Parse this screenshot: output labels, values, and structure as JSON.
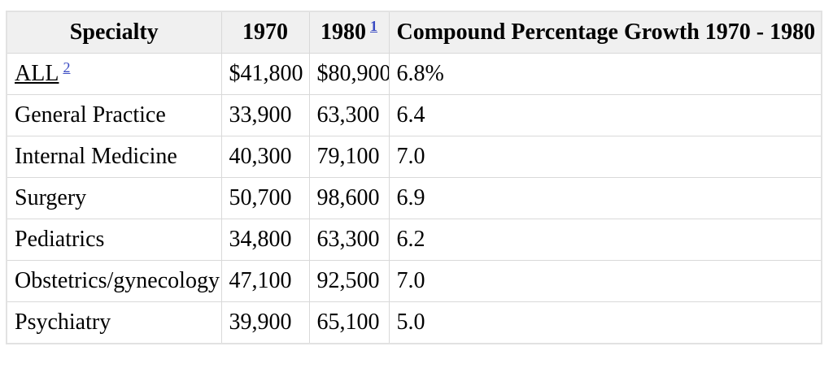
{
  "table": {
    "header": {
      "specialty": "Specialty",
      "y1970": "1970",
      "y1980": "1980",
      "y1980_footnote": "1",
      "growth": "Compound Percentage Growth 1970 - 1980"
    },
    "rows": [
      {
        "specialty": "ALL",
        "footnote": "2",
        "v1970": "$41,800",
        "v1980": "$80,900",
        "growth": "6.8%"
      },
      {
        "specialty": "General Practice",
        "v1970": "33,900",
        "v1980": "63,300",
        "growth": "6.4"
      },
      {
        "specialty": "Internal Medicine",
        "v1970": "40,300",
        "v1980": "79,100",
        "growth": "7.0"
      },
      {
        "specialty": "Surgery",
        "v1970": "50,700",
        "v1980": "98,600",
        "growth": "6.9"
      },
      {
        "specialty": "Pediatrics",
        "v1970": "34,800",
        "v1980": "63,300",
        "growth": "6.2"
      },
      {
        "specialty": "Obstetrics/gynecology",
        "v1970": "47,100",
        "v1980": "92,500",
        "growth": "7.0"
      },
      {
        "specialty": "Psychiatry",
        "v1970": "39,900",
        "v1980": "65,100",
        "growth": "5.0"
      }
    ]
  },
  "colors": {
    "header_bg": "#f0f0f0",
    "cell_border": "#d9d9d9",
    "outer_border": "#e2e2e2",
    "footnote_link": "#3b4cc3",
    "text": "#000000"
  }
}
